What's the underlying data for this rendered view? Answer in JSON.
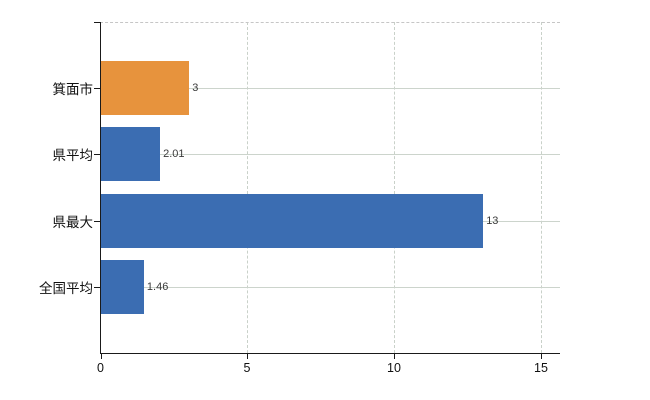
{
  "chart_data": {
    "type": "bar",
    "orientation": "horizontal",
    "title": "",
    "xlabel": "",
    "ylabel": "",
    "categories": [
      "箕面市",
      "県平均",
      "県最大",
      "全国平均"
    ],
    "values": [
      3,
      2.01,
      13,
      1.46
    ],
    "value_labels": [
      "3",
      "2.01",
      "13",
      "1.46"
    ],
    "series": [
      {
        "name": "",
        "values": [
          3,
          2.01,
          13,
          1.46
        ]
      }
    ],
    "bar_colors": [
      "#e7933d",
      "#3b6db2",
      "#3b6db2",
      "#3b6db2"
    ],
    "x_ticks": [
      0,
      5,
      10,
      15
    ],
    "x_tick_labels": [
      "0",
      "5",
      "10",
      "15"
    ],
    "xlim": [
      0,
      15.65
    ],
    "grid": true,
    "gridlines": {
      "vertical_at": [
        5,
        10,
        15
      ],
      "horizontal": "category-centers",
      "top_frame": "dashed"
    },
    "legend": false
  },
  "colors": {
    "background": "#ffffff",
    "bar_orange": "#e7933d",
    "bar_blue": "#3b6db2",
    "axis": "#1a1a1a",
    "grid_vertical": "#c9d1c9",
    "grid_horizontal": "#ccd4cc",
    "frame_dashed": "#c6c6c6",
    "value_label_text": "#3a3a3a",
    "tick_label_text": "#111111"
  }
}
